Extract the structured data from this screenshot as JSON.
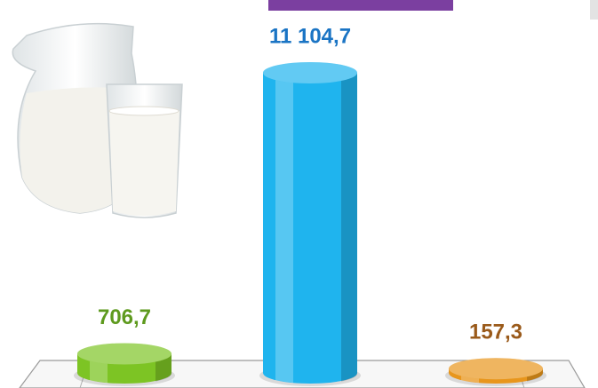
{
  "chart_data": {
    "type": "bar3d",
    "categories": [
      null,
      null,
      null
    ],
    "values": [
      706.7,
      11104.7,
      157.3
    ],
    "value_labels": [
      "706,7",
      "11 104,7",
      "157,3"
    ],
    "colors": [
      "#7dc424",
      "#1fb4ee",
      "#e8961c"
    ],
    "label_colors": [
      "#5e9a1e",
      "#1a74c4",
      "#9a5a1a"
    ]
  }
}
